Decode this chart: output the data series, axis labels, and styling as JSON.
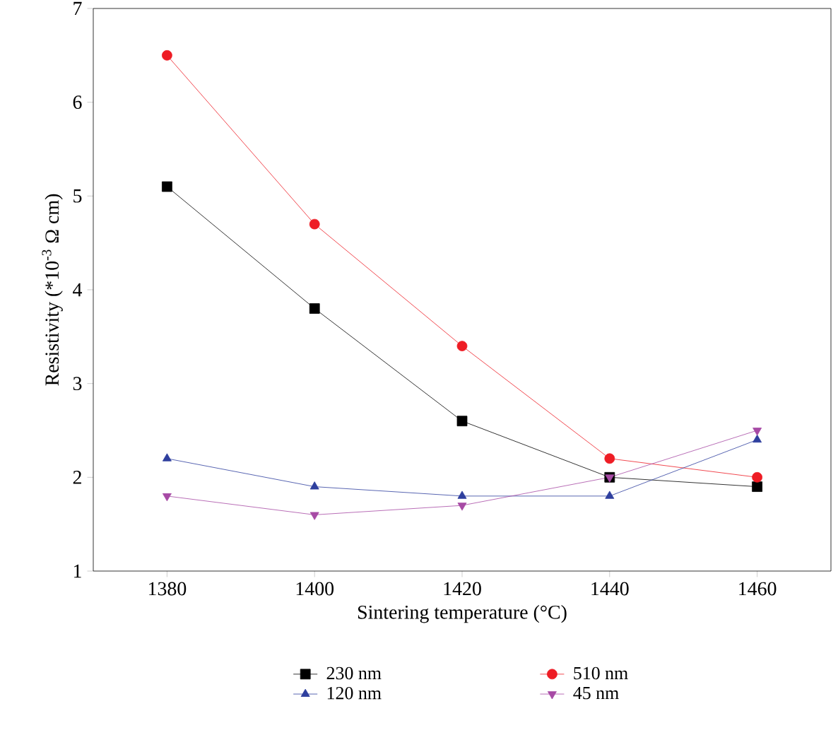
{
  "chart_data": {
    "type": "line",
    "xlabel": "Sintering temperature (°C)",
    "ylabel": "Resistivity (*10$^{-3}$ Ω cm)",
    "x": [
      1380,
      1400,
      1420,
      1440,
      1460
    ],
    "xlim": [
      1370,
      1470
    ],
    "xticks": [
      1380,
      1400,
      1420,
      1440,
      1460
    ],
    "ylim": [
      1,
      7
    ],
    "yticks": [
      1,
      2,
      3,
      4,
      5,
      6,
      7
    ],
    "grid": false,
    "legend": "bottom",
    "line_style": "solid",
    "series": [
      {
        "name": "230 nm",
        "color": "#000000",
        "marker": "square",
        "values": [
          5.1,
          3.8,
          2.6,
          2.0,
          1.9
        ]
      },
      {
        "name": "510 nm",
        "color": "#ee1c24",
        "marker": "circle",
        "values": [
          6.5,
          4.7,
          3.4,
          2.2,
          2.0
        ]
      },
      {
        "name": "120 nm",
        "color": "#2e3f9e",
        "marker": "triangle",
        "values": [
          2.2,
          1.9,
          1.8,
          1.8,
          2.4
        ]
      },
      {
        "name": "45 nm",
        "color": "#a74aa5",
        "marker": "triangle down",
        "values": [
          1.8,
          1.6,
          1.7,
          2.0,
          2.5
        ]
      }
    ]
  }
}
